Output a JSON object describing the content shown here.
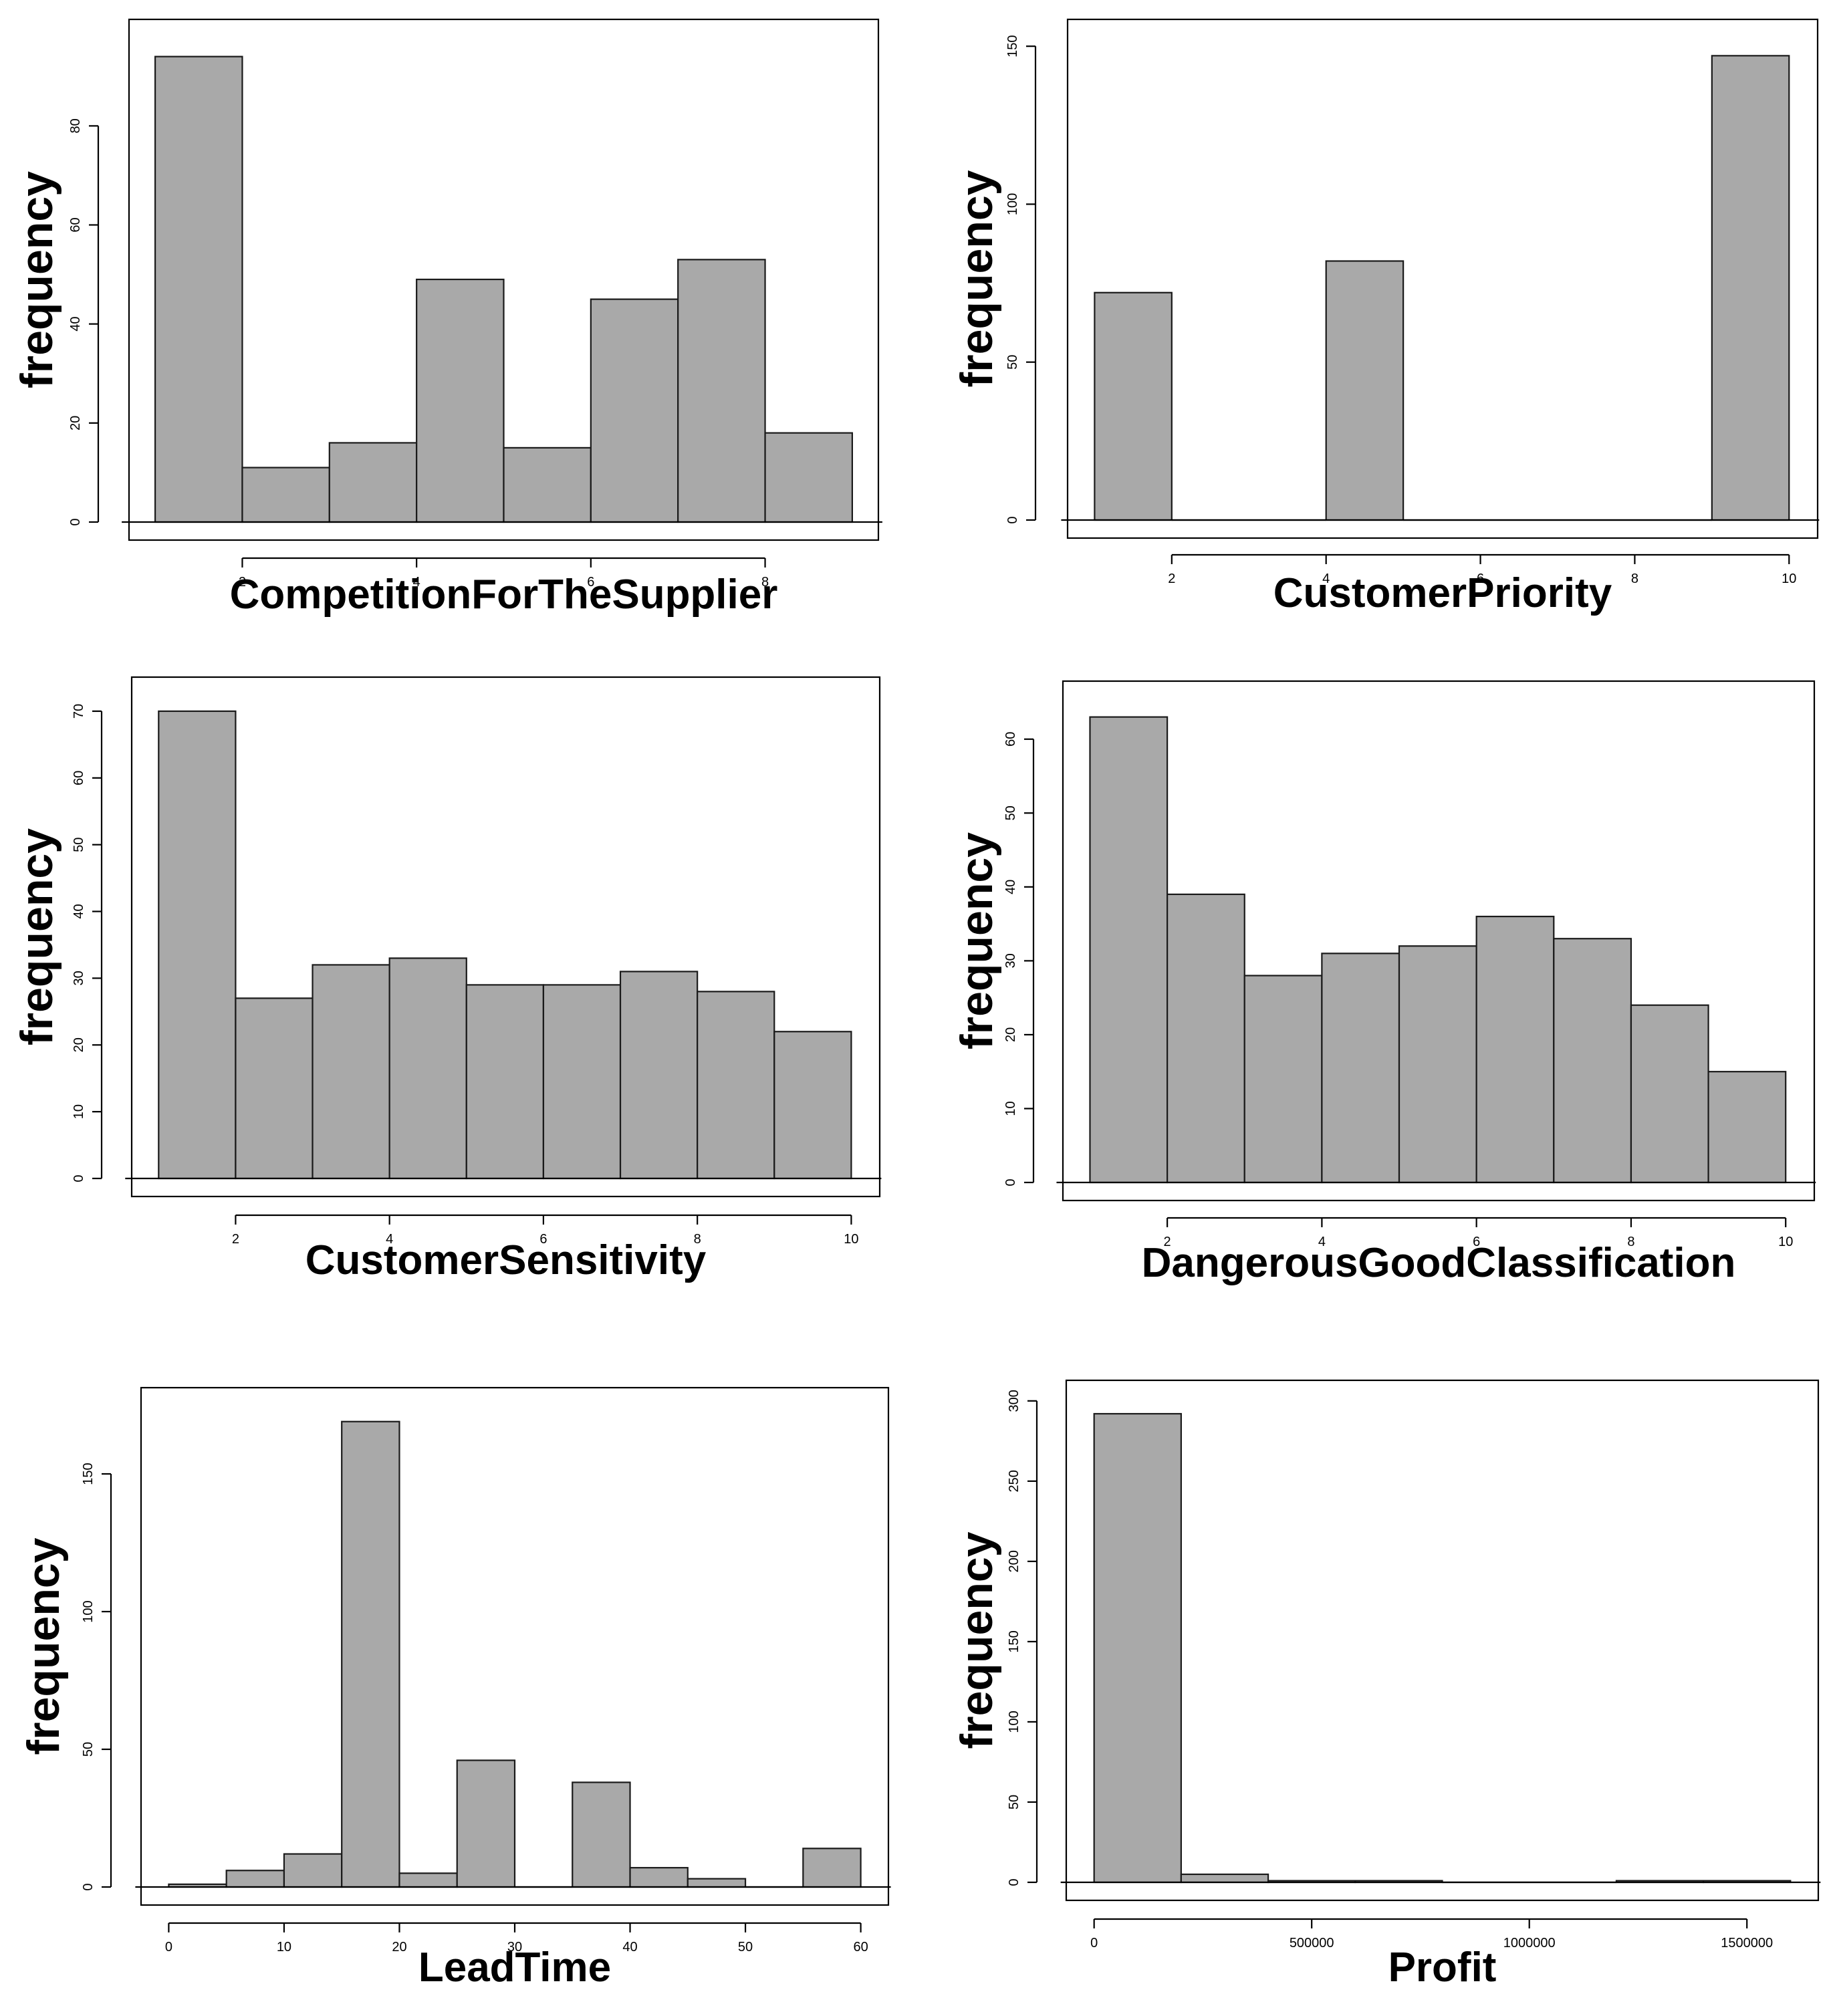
{
  "chart_data": [
    {
      "type": "bar",
      "subtype": "histogram",
      "xlabel": "CompetitionForTheSupplier",
      "ylabel": "frequency",
      "bins": [
        [
          1,
          2
        ],
        [
          2,
          3
        ],
        [
          3,
          4
        ],
        [
          4,
          5
        ],
        [
          5,
          6
        ],
        [
          6,
          7
        ],
        [
          7,
          8
        ],
        [
          8,
          9
        ]
      ],
      "values": [
        94,
        11,
        16,
        49,
        15,
        45,
        53,
        18
      ],
      "xlim": [
        0.7,
        9.3
      ],
      "ylim": [
        0,
        98
      ],
      "xticks": [
        2,
        4,
        6,
        8
      ],
      "xtick_labels": [
        "2",
        "4",
        "6",
        "8"
      ],
      "yticks": [
        0,
        20,
        40,
        60,
        80
      ],
      "ytick_labels": [
        "0",
        "20",
        "40",
        "60",
        "80"
      ]
    },
    {
      "type": "bar",
      "subtype": "histogram",
      "xlabel": "CustomerPriority",
      "ylabel": "frequency",
      "bins": [
        [
          1,
          2
        ],
        [
          2,
          3
        ],
        [
          3,
          4
        ],
        [
          4,
          5
        ],
        [
          5,
          6
        ],
        [
          6,
          7
        ],
        [
          7,
          8
        ],
        [
          8,
          9
        ],
        [
          9,
          10
        ]
      ],
      "values": [
        72,
        0,
        0,
        82,
        0,
        0,
        0,
        0,
        147
      ],
      "xlim": [
        0.65,
        10.37
      ],
      "ylim": [
        0,
        153
      ],
      "xticks": [
        2,
        4,
        6,
        8,
        10
      ],
      "xtick_labels": [
        "2",
        "4",
        "6",
        "8",
        "10"
      ],
      "yticks": [
        0,
        50,
        100,
        150
      ],
      "ytick_labels": [
        "0",
        "50",
        "100",
        "150"
      ]
    },
    {
      "type": "bar",
      "subtype": "histogram",
      "xlabel": "CustomerSensitivity",
      "ylabel": "frequency",
      "bins": [
        [
          1,
          2
        ],
        [
          2,
          3
        ],
        [
          3,
          4
        ],
        [
          4,
          5
        ],
        [
          5,
          6
        ],
        [
          6,
          7
        ],
        [
          7,
          8
        ],
        [
          8,
          9
        ],
        [
          9,
          10
        ]
      ],
      "values": [
        70,
        27,
        32,
        33,
        29,
        29,
        31,
        28,
        22
      ],
      "xlim": [
        0.65,
        10.37
      ],
      "ylim": [
        0,
        72.5
      ],
      "xticks": [
        2,
        4,
        6,
        8,
        10
      ],
      "xtick_labels": [
        "2",
        "4",
        "6",
        "8",
        "10"
      ],
      "yticks": [
        0,
        10,
        20,
        30,
        40,
        50,
        60,
        70
      ],
      "ytick_labels": [
        "0",
        "10",
        "20",
        "30",
        "40",
        "50",
        "60",
        "70"
      ]
    },
    {
      "type": "bar",
      "subtype": "histogram",
      "xlabel": "DangerousGoodClassification",
      "ylabel": "frequency",
      "bins": [
        [
          1,
          2
        ],
        [
          2,
          3
        ],
        [
          3,
          4
        ],
        [
          4,
          5
        ],
        [
          5,
          6
        ],
        [
          6,
          7
        ],
        [
          7,
          8
        ],
        [
          8,
          9
        ],
        [
          9,
          10
        ]
      ],
      "values": [
        63,
        39,
        28,
        31,
        32,
        36,
        33,
        24,
        15
      ],
      "xlim": [
        0.65,
        10.37
      ],
      "ylim": [
        0,
        65.5
      ],
      "xticks": [
        2,
        4,
        6,
        8,
        10
      ],
      "xtick_labels": [
        "2",
        "4",
        "6",
        "8",
        "10"
      ],
      "yticks": [
        0,
        10,
        20,
        30,
        40,
        50,
        60
      ],
      "ytick_labels": [
        "0",
        "10",
        "20",
        "30",
        "40",
        "50",
        "60"
      ]
    },
    {
      "type": "bar",
      "subtype": "histogram",
      "xlabel": "LeadTime",
      "ylabel": "frequency",
      "bins": [
        [
          0,
          5
        ],
        [
          5,
          10
        ],
        [
          10,
          15
        ],
        [
          15,
          20
        ],
        [
          20,
          25
        ],
        [
          25,
          30
        ],
        [
          30,
          35
        ],
        [
          35,
          40
        ],
        [
          40,
          45
        ],
        [
          45,
          50
        ],
        [
          50,
          55
        ],
        [
          55,
          60
        ]
      ],
      "values": [
        1,
        6,
        12,
        169,
        5,
        46,
        0,
        38,
        7,
        3,
        0,
        14
      ],
      "xlim": [
        -2.4,
        62.4
      ],
      "ylim": [
        0,
        175
      ],
      "xticks": [
        0,
        10,
        20,
        30,
        40,
        50,
        60
      ],
      "xtick_labels": [
        "0",
        "10",
        "20",
        "30",
        "40",
        "50",
        "60"
      ],
      "yticks": [
        0,
        50,
        100,
        150
      ],
      "ytick_labels": [
        "0",
        "50",
        "100",
        "150"
      ]
    },
    {
      "type": "bar",
      "subtype": "histogram",
      "xlabel": "Profit",
      "ylabel": "frequency",
      "bins": [
        [
          0,
          200000
        ],
        [
          200000,
          400000
        ],
        [
          400000,
          600000
        ],
        [
          600000,
          800000
        ],
        [
          800000,
          1000000
        ],
        [
          1000000,
          1200000
        ],
        [
          1200000,
          1400000
        ],
        [
          1400000,
          1600000
        ]
      ],
      "values": [
        292,
        5,
        1,
        1,
        0,
        0,
        1,
        1
      ],
      "xlim": [
        -64000,
        1664000
      ],
      "ylim": [
        0,
        302
      ],
      "xticks": [
        0,
        500000,
        1000000,
        1500000
      ],
      "xtick_labels": [
        "0",
        "500000",
        "1000000",
        "1500000"
      ],
      "yticks": [
        0,
        50,
        100,
        150,
        200,
        250,
        300
      ],
      "ytick_labels": [
        "0",
        "50",
        "100",
        "150",
        "200",
        "250",
        "300"
      ]
    }
  ]
}
